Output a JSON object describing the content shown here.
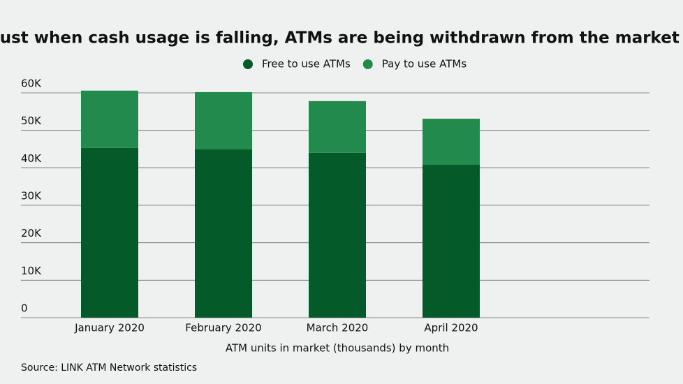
{
  "chart_data": {
    "type": "stacked_bar",
    "title": "Just when cash usage is falling, ATMs are being withdrawn from the market",
    "categories": [
      "January 2020",
      "February 2020",
      "March 2020",
      "April 2020"
    ],
    "series": [
      {
        "name": "Free to use ATMs",
        "color": "#045a29",
        "values": [
          45300,
          44900,
          44000,
          40800
        ]
      },
      {
        "name": "Pay to use ATMs",
        "color": "#228a4c",
        "values": [
          15300,
          15300,
          13800,
          12300
        ]
      }
    ],
    "ylim": [
      0,
      60000
    ],
    "yticks": [
      0,
      {
        "value": 10000,
        "label": "10K"
      },
      {
        "value": 20000,
        "label": "20K"
      },
      {
        "value": 30000,
        "label": "30K"
      },
      {
        "value": 40000,
        "label": "40K"
      },
      {
        "value": 50000,
        "label": "50K"
      },
      {
        "value": 60000,
        "label": "60K"
      }
    ],
    "grid": true,
    "xlabel": "ATM units in market (thousands) by month",
    "source": "Source: LINK ATM Network statistics"
  }
}
